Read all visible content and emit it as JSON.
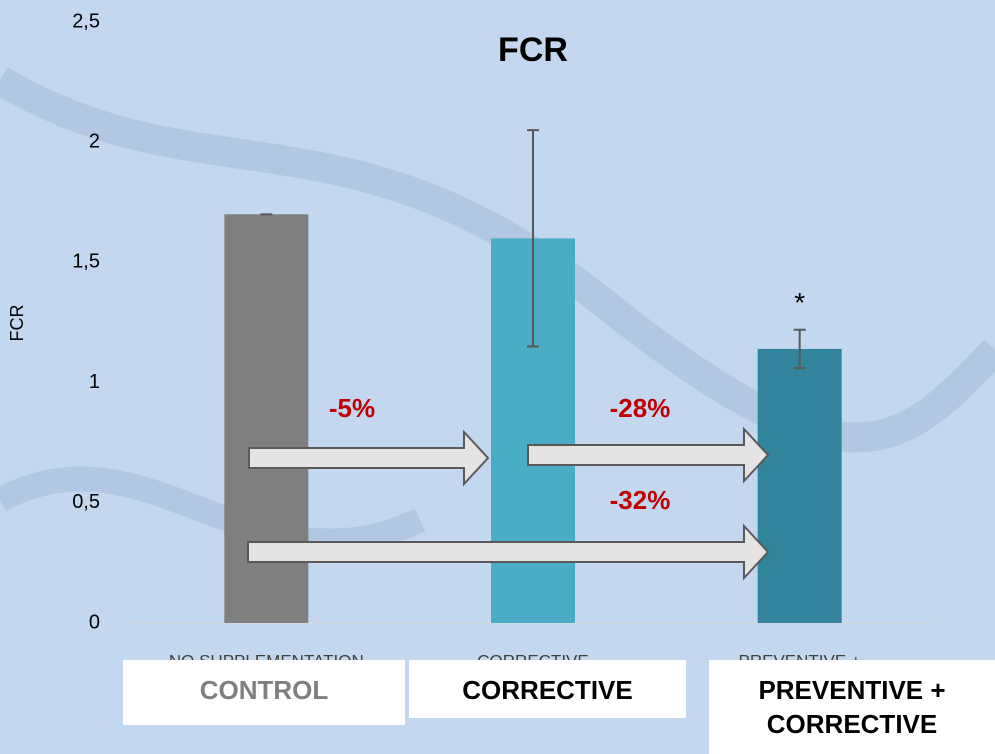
{
  "chart_data": {
    "type": "bar",
    "title": "FCR",
    "y_label": "FCR",
    "categories": [
      "NO SUPPLEMENTATION",
      "CORRECTIVE",
      "PREVENTIVE +"
    ],
    "values": [
      1.7,
      1.6,
      1.14
    ],
    "errors": [
      0,
      0.45,
      0.08
    ],
    "colors": [
      "#7f7f7f",
      "#4bacc6",
      "#31849b"
    ],
    "ylim": [
      0,
      2.5
    ],
    "yticks": [
      0,
      {
        "value": 0.5,
        "label": "0,5"
      },
      1,
      {
        "value": 1.5,
        "label": "1,5"
      },
      2,
      {
        "value": 2.5,
        "label": "2,5"
      }
    ],
    "significance": "*",
    "annotations": [
      "-5%",
      "-28%",
      "-32%"
    ],
    "group_labels": [
      "CONTROL",
      "CORRECTIVE",
      "PREVENTIVE + CORRECTIVE"
    ]
  }
}
